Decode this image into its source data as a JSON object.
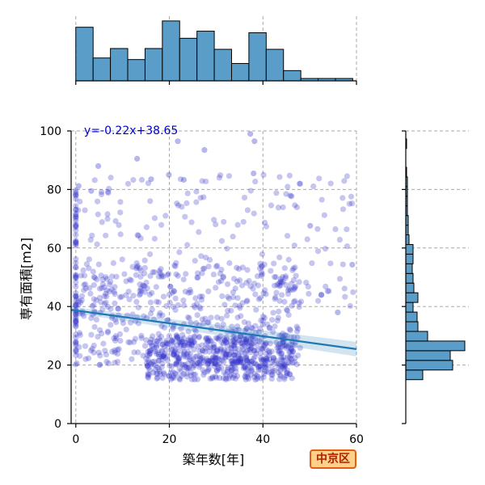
{
  "chart_data": {
    "type": "scatter",
    "x_label": "築年数[年]",
    "y_label": "専有面積[m2]",
    "xlim": [
      -1,
      60
    ],
    "ylim": [
      0,
      100
    ],
    "x_ticks": [
      0,
      20,
      40,
      60
    ],
    "y_ticks": [
      0,
      20,
      40,
      60,
      80,
      100
    ],
    "grid": true,
    "regression": {
      "slope": -0.22,
      "intercept": 38.65,
      "label": "y=-0.22x+38.65",
      "color": "#1f77b4"
    },
    "point_color": "#3030c8",
    "hist_color": "#5b9dc9",
    "badge_label": "中京区",
    "top_histogram": {
      "bins": [
        {
          "x0": 0,
          "x1": 3.7,
          "height": 68
        },
        {
          "x0": 3.7,
          "x1": 7.4,
          "height": 29
        },
        {
          "x0": 7.4,
          "x1": 11.1,
          "height": 41
        },
        {
          "x0": 11.1,
          "x1": 14.8,
          "height": 27
        },
        {
          "x0": 14.8,
          "x1": 18.5,
          "height": 41
        },
        {
          "x0": 18.5,
          "x1": 22.2,
          "height": 76
        },
        {
          "x0": 22.2,
          "x1": 25.9,
          "height": 54
        },
        {
          "x0": 25.9,
          "x1": 29.6,
          "height": 63
        },
        {
          "x0": 29.6,
          "x1": 33.3,
          "height": 40
        },
        {
          "x0": 33.3,
          "x1": 37.0,
          "height": 22
        },
        {
          "x0": 37.0,
          "x1": 40.7,
          "height": 61
        },
        {
          "x0": 40.7,
          "x1": 44.4,
          "height": 40
        },
        {
          "x0": 44.4,
          "x1": 48.1,
          "height": 13
        },
        {
          "x0": 48.1,
          "x1": 51.8,
          "height": 3
        },
        {
          "x0": 51.8,
          "x1": 55.5,
          "height": 3
        },
        {
          "x0": 55.5,
          "x1": 59.2,
          "height": 3
        }
      ]
    },
    "right_histogram": {
      "bins": [
        {
          "y0": 15,
          "y1": 18.3,
          "width": 21
        },
        {
          "y0": 18.3,
          "y1": 21.6,
          "width": 58
        },
        {
          "y0": 21.6,
          "y1": 24.9,
          "width": 55
        },
        {
          "y0": 24.9,
          "y1": 28.2,
          "width": 73
        },
        {
          "y0": 28.2,
          "y1": 31.5,
          "width": 27
        },
        {
          "y0": 31.5,
          "y1": 34.8,
          "width": 15
        },
        {
          "y0": 34.8,
          "y1": 38.1,
          "width": 14
        },
        {
          "y0": 38.1,
          "y1": 41.4,
          "width": 9
        },
        {
          "y0": 41.4,
          "y1": 44.7,
          "width": 15
        },
        {
          "y0": 44.7,
          "y1": 48,
          "width": 10
        },
        {
          "y0": 48,
          "y1": 51.3,
          "width": 9
        },
        {
          "y0": 51.3,
          "y1": 54.6,
          "width": 8
        },
        {
          "y0": 54.6,
          "y1": 57.9,
          "width": 9
        },
        {
          "y0": 57.9,
          "y1": 61.2,
          "width": 9
        },
        {
          "y0": 61.2,
          "y1": 64.5,
          "width": 4
        },
        {
          "y0": 64.5,
          "y1": 67.8,
          "width": 3
        },
        {
          "y0": 67.8,
          "y1": 71.1,
          "width": 3
        },
        {
          "y0": 71.1,
          "y1": 74.4,
          "width": 2
        },
        {
          "y0": 74.4,
          "y1": 77.7,
          "width": 2
        },
        {
          "y0": 77.7,
          "y1": 81,
          "width": 2
        },
        {
          "y0": 81,
          "y1": 84.3,
          "width": 2
        },
        {
          "y0": 84.3,
          "y1": 87.6,
          "width": 1
        },
        {
          "y0": 94,
          "y1": 97.3,
          "width": 1
        }
      ]
    },
    "clusters": [
      {
        "xmin": 15,
        "xmax": 47,
        "ymin": 15,
        "ymax": 30,
        "count": 520
      },
      {
        "xmin": 0,
        "xmax": 48,
        "ymin": 20,
        "ymax": 55,
        "count": 480
      },
      {
        "xmin": 0,
        "xmax": 60,
        "ymin": 40,
        "ymax": 85,
        "count": 180
      },
      {
        "xmin": 0,
        "xmax": 3,
        "ymin": 20,
        "ymax": 80,
        "count": 70
      }
    ],
    "outliers": [
      {
        "x": 4.8,
        "y": 88
      },
      {
        "x": 13.1,
        "y": 90.5
      },
      {
        "x": 21.8,
        "y": 96.5
      },
      {
        "x": 37.3,
        "y": 99
      },
      {
        "x": 38.2,
        "y": 96.5
      },
      {
        "x": 27.5,
        "y": 93.5
      },
      {
        "x": 19.9,
        "y": 85
      },
      {
        "x": 16.1,
        "y": 83.5
      },
      {
        "x": 23.1,
        "y": 83.3
      },
      {
        "x": 38,
        "y": 85.5
      },
      {
        "x": 46.1,
        "y": 77.7
      },
      {
        "x": 3.3,
        "y": 79.5
      },
      {
        "x": 0.6,
        "y": 81.2
      },
      {
        "x": 59.1,
        "y": 54.3
      },
      {
        "x": 56,
        "y": 38
      },
      {
        "x": 52.5,
        "y": 44
      },
      {
        "x": 50.1,
        "y": 67.6
      }
    ]
  }
}
